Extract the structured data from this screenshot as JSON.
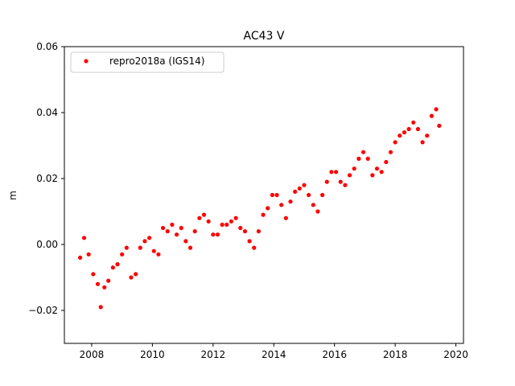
{
  "chart_data": {
    "type": "scatter",
    "title": "AC43 V",
    "xlabel": "",
    "ylabel": "m",
    "xlim": [
      2007.1,
      2020.25
    ],
    "ylim": [
      -0.03,
      0.06
    ],
    "x_ticks": [
      2008,
      2010,
      2012,
      2014,
      2016,
      2018,
      2020
    ],
    "x_tick_labels": [
      "2008",
      "2010",
      "2012",
      "2014",
      "2016",
      "2018",
      "2020"
    ],
    "y_ticks": [
      -0.02,
      0.0,
      0.02,
      0.04,
      0.06
    ],
    "y_tick_labels": [
      "−0.02",
      "0.00",
      "0.02",
      "0.04",
      "0.06"
    ],
    "grid": false,
    "legend": {
      "position": "top-left",
      "entries": [
        "repro2018a (IGS14)"
      ]
    },
    "series": [
      {
        "name": "repro2018a (IGS14)",
        "color": "#ff0000",
        "marker": "circle",
        "x": [
          2007.62,
          2007.75,
          2007.9,
          2008.05,
          2008.2,
          2008.3,
          2008.42,
          2008.55,
          2008.7,
          2008.85,
          2009.0,
          2009.15,
          2009.3,
          2009.45,
          2009.6,
          2009.75,
          2009.9,
          2010.05,
          2010.2,
          2010.35,
          2010.5,
          2010.65,
          2010.8,
          2010.95,
          2011.1,
          2011.25,
          2011.4,
          2011.55,
          2011.7,
          2011.85,
          2012.0,
          2012.15,
          2012.3,
          2012.45,
          2012.6,
          2012.75,
          2012.9,
          2013.05,
          2013.2,
          2013.35,
          2013.5,
          2013.65,
          2013.8,
          2013.95,
          2014.1,
          2014.25,
          2014.4,
          2014.55,
          2014.7,
          2014.85,
          2015.0,
          2015.15,
          2015.3,
          2015.45,
          2015.6,
          2015.75,
          2015.9,
          2016.05,
          2016.2,
          2016.35,
          2016.5,
          2016.65,
          2016.8,
          2016.95,
          2017.1,
          2017.25,
          2017.4,
          2017.55,
          2017.7,
          2017.85,
          2018.0,
          2018.15,
          2018.3,
          2018.45,
          2018.6,
          2018.75,
          2018.9,
          2019.05,
          2019.2,
          2019.35,
          2019.45
        ],
        "y": [
          -0.004,
          0.002,
          -0.003,
          -0.009,
          -0.012,
          -0.019,
          -0.013,
          -0.011,
          -0.007,
          -0.006,
          -0.003,
          -0.001,
          -0.01,
          -0.009,
          -0.001,
          0.001,
          0.002,
          -0.002,
          -0.003,
          0.005,
          0.004,
          0.006,
          0.003,
          0.005,
          0.001,
          -0.001,
          0.004,
          0.008,
          0.009,
          0.007,
          0.003,
          0.003,
          0.006,
          0.006,
          0.007,
          0.008,
          0.005,
          0.004,
          0.001,
          -0.001,
          0.004,
          0.009,
          0.011,
          0.015,
          0.015,
          0.012,
          0.008,
          0.013,
          0.016,
          0.017,
          0.018,
          0.015,
          0.012,
          0.01,
          0.015,
          0.019,
          0.022,
          0.022,
          0.019,
          0.018,
          0.021,
          0.023,
          0.026,
          0.028,
          0.026,
          0.021,
          0.023,
          0.022,
          0.025,
          0.028,
          0.031,
          0.033,
          0.034,
          0.035,
          0.037,
          0.035,
          0.031,
          0.033,
          0.039,
          0.041,
          0.036
        ]
      }
    ]
  }
}
